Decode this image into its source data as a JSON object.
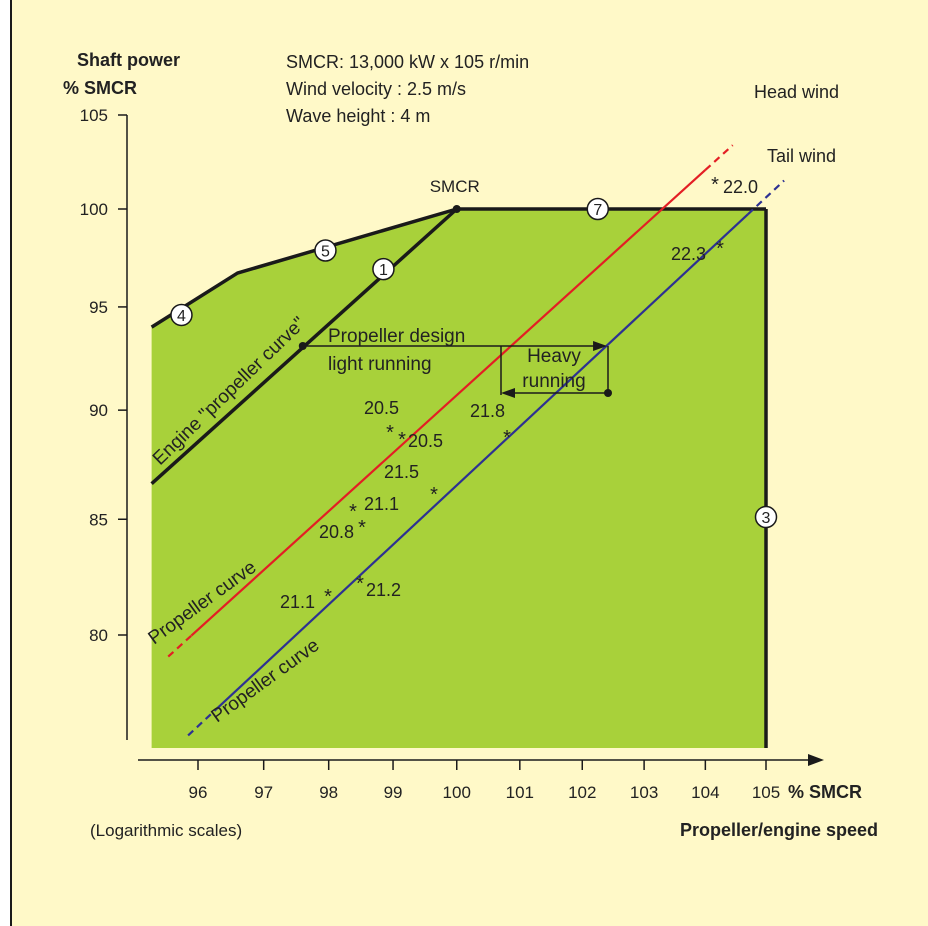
{
  "chart_data": {
    "type": "line",
    "title": "",
    "ylabel": [
      "Shaft power",
      "% SMCR"
    ],
    "xlabel": "Propeller/engine speed",
    "x_unit": "% SMCR",
    "scale_note": "(Logarithmic scales)",
    "x_scale": "log",
    "y_scale": "log",
    "xlim": [
      95.3,
      105.9
    ],
    "ylim": [
      75.4,
      105
    ],
    "x_ticks": [
      96,
      97,
      98,
      99,
      100,
      101,
      102,
      103,
      104,
      105
    ],
    "y_ticks": [
      80,
      85,
      90,
      95,
      100,
      105
    ],
    "grid": false,
    "info_lines": [
      "SMCR: 13,000 kW x 105 r/min",
      "Wind velocity : 2.5 m/s",
      "Wave height  :  4 m"
    ],
    "layout_area": {
      "color": "#a8d13a",
      "boundary": [
        [
          95.3,
          94.0
        ],
        [
          96.6,
          96.7
        ],
        [
          100,
          100
        ],
        [
          105,
          100
        ],
        [
          105,
          75.4
        ],
        [
          95.3,
          75.4
        ]
      ]
    },
    "layout_lines": [
      {
        "id": "4-5",
        "points": [
          [
            95.3,
            94.0
          ],
          [
            96.6,
            96.7
          ],
          [
            100,
            100
          ]
        ]
      },
      {
        "id": "7",
        "points": [
          [
            100,
            100
          ],
          [
            105,
            100
          ]
        ]
      },
      {
        "id": "3",
        "points": [
          [
            105,
            100
          ],
          [
            105,
            75.4
          ]
        ]
      },
      {
        "id": "1",
        "points": [
          [
            95.3,
            86.6
          ],
          [
            100,
            100
          ]
        ]
      }
    ],
    "numbered_markers": [
      {
        "label": "4",
        "x": 95.75,
        "y": 94.6
      },
      {
        "label": "5",
        "x": 97.95,
        "y": 97.85
      },
      {
        "label": "1",
        "x": 98.85,
        "y": 96.9
      },
      {
        "label": "7",
        "x": 102.25,
        "y": 100
      },
      {
        "label": "3",
        "x": 105,
        "y": 85.1
      }
    ],
    "smcr_point": {
      "label": "SMCR",
      "x": 100,
      "y": 100
    },
    "series": [
      {
        "name": "Head wind",
        "color": "#e31e24",
        "points": [
          [
            95.55,
            79.1
          ],
          [
            104.45,
            103.4
          ]
        ],
        "dash_before": 95.9,
        "dash_after": 104.0,
        "curve_label": "Propeller curve",
        "annotations": [
          {
            "text": "20.5",
            "x": 99.35,
            "y": 89.4
          },
          {
            "text": "20.5",
            "x": 99.35,
            "y": 88.9
          },
          {
            "text": "21.1",
            "x": 98.6,
            "y": 85.7
          },
          {
            "text": "20.8",
            "x": 98.5,
            "y": 84.9
          },
          {
            "text": "22.0",
            "x": 104.2,
            "y": 101.1
          }
        ]
      },
      {
        "name": "Tail wind",
        "color": "#2d3192",
        "points": [
          [
            95.85,
            75.9
          ],
          [
            105.3,
            101.5
          ]
        ],
        "dash_before": 96.25,
        "dash_after": 104.7,
        "curve_label": "Propeller curve",
        "annotations": [
          {
            "text": "21.8",
            "x": 100.85,
            "y": 89.0
          },
          {
            "text": "21.5",
            "x": 99.7,
            "y": 86.5
          },
          {
            "text": "21.1",
            "x": 98.0,
            "y": 82.0
          },
          {
            "text": "21.2",
            "x": 98.55,
            "y": 82.5
          },
          {
            "text": "22.3",
            "x": 104.7,
            "y": 99.1
          }
        ]
      }
    ],
    "curve_labels": {
      "engine": "Engine \"propeller curve\"",
      "design_1": "Propeller design",
      "design_2": "light running",
      "heavy_1": "Heavy",
      "heavy_2": "running"
    },
    "design_arrow": {
      "x_from": 97.6,
      "x_to": 102.4,
      "y": 93.0
    },
    "heavy_arrow": {
      "x_from": 102.4,
      "x_to": 100.7,
      "y": 90.9
    },
    "heavy_box": {
      "x1": 100.7,
      "x2": 102.5,
      "y1": 93.0,
      "y2": 90.9
    },
    "colors": {
      "background": "#fff9c8",
      "green": "#a8d13a",
      "head": "#e31e24",
      "tail": "#2d3192",
      "axis": "#1a1a1a"
    }
  }
}
